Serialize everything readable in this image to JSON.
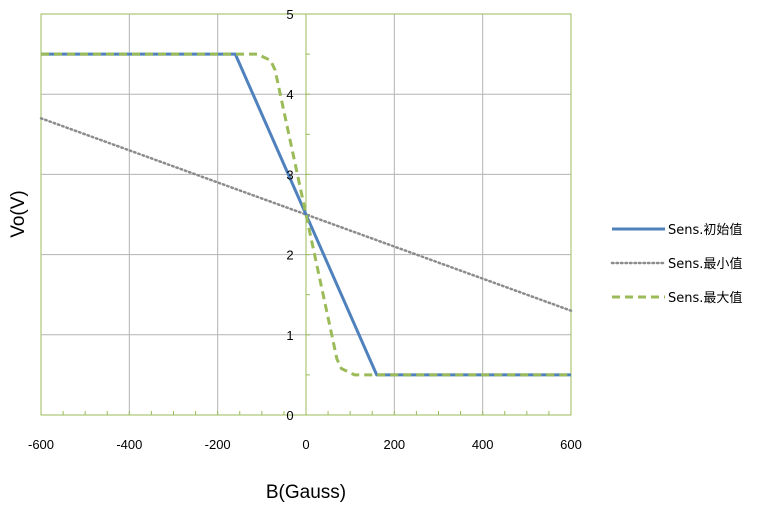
{
  "chart_data": {
    "type": "line",
    "xlabel": "B(Gauss)",
    "ylabel": "Vo(V)",
    "xlim": [
      -600,
      600
    ],
    "ylim": [
      0,
      5
    ],
    "xticks": [
      -600,
      -400,
      -200,
      0,
      200,
      400,
      600
    ],
    "yticks": [
      0,
      1,
      2,
      3,
      4,
      5
    ],
    "grid": true,
    "legend_position": "right",
    "series": [
      {
        "name": "Sens.初始值",
        "color": "#4f81bd",
        "style": "solid",
        "x": [
          -600,
          -160,
          160,
          600
        ],
        "y": [
          4.5,
          4.5,
          0.5,
          0.5
        ]
      },
      {
        "name": "Sens.最小值",
        "color": "#8c8c8c",
        "style": "dotted",
        "x": [
          -600,
          600
        ],
        "y": [
          3.7,
          1.3
        ]
      },
      {
        "name": "Sens.最大值",
        "color": "#9bbb59",
        "style": "dashed",
        "x": [
          -600,
          -110,
          -80,
          -70,
          70,
          80,
          110,
          600
        ],
        "y": [
          4.5,
          4.5,
          4.42,
          4.3,
          0.7,
          0.58,
          0.5,
          0.5
        ]
      }
    ]
  }
}
